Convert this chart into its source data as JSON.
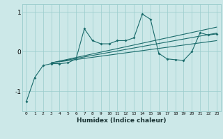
{
  "xlabel": "Humidex (Indice chaleur)",
  "bg_color": "#cce8e8",
  "grid_color": "#99cccc",
  "line_color": "#1a6b6b",
  "x_data": [
    0,
    1,
    2,
    3,
    4,
    5,
    6,
    7,
    8,
    9,
    10,
    11,
    12,
    13,
    14,
    15,
    16,
    17,
    18,
    19,
    20,
    21,
    22,
    23
  ],
  "line1_y": [
    -1.25,
    -0.65,
    -0.35,
    -0.3,
    -0.3,
    -0.28,
    -0.18,
    0.58,
    0.28,
    0.2,
    0.2,
    0.28,
    0.28,
    0.35,
    0.95,
    0.82,
    -0.04,
    -0.18,
    -0.2,
    -0.22,
    0.0,
    0.48,
    0.42,
    0.45
  ],
  "trend1_x": [
    3,
    23
  ],
  "trend1_y": [
    -0.28,
    0.47
  ],
  "trend2_x": [
    3,
    23
  ],
  "trend2_y": [
    -0.28,
    0.62
  ],
  "trend3_x": [
    3,
    23
  ],
  "trend3_y": [
    -0.28,
    0.28
  ],
  "ylim": [
    -1.5,
    1.2
  ],
  "xlim": [
    -0.5,
    23.5
  ],
  "yticks": [
    -1,
    0,
    1
  ],
  "xticks": [
    0,
    1,
    2,
    3,
    4,
    5,
    6,
    7,
    8,
    9,
    10,
    11,
    12,
    13,
    14,
    15,
    16,
    17,
    18,
    19,
    20,
    21,
    22,
    23
  ]
}
